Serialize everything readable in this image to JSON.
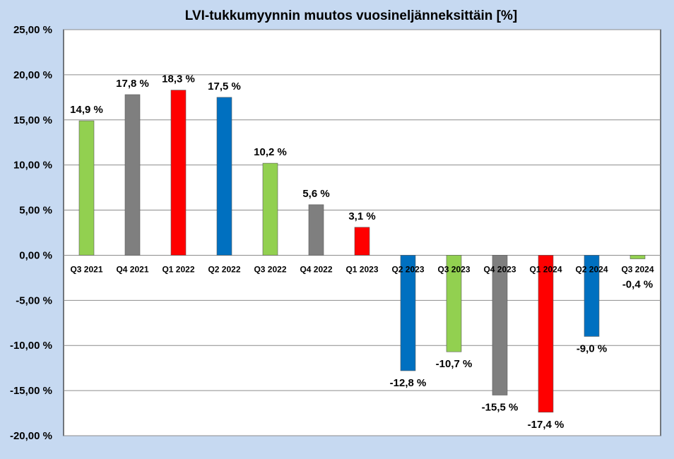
{
  "chart_data": {
    "type": "bar",
    "title": "LVI-tukkumyynnin muutos vuosineljänneksittäin [%]",
    "xlabel": "",
    "ylabel": "",
    "ylim": [
      -20,
      25
    ],
    "ytick_step": 5,
    "ytick_labels": [
      "25,00 %",
      "20,00 %",
      "15,00 %",
      "10,00 %",
      "5,00 %",
      "0,00 %",
      "-5,00 %",
      "-10,00 %",
      "-15,00 %",
      "-20,00 %"
    ],
    "categories": [
      "Q3 2021",
      "Q4 2021",
      "Q1 2022",
      "Q2 2022",
      "Q3 2022",
      "Q4 2022",
      "Q1 2023",
      "Q2 2023",
      "Q3 2023",
      "Q4 2023",
      "Q1 2024",
      "Q2 2024",
      "Q3 2024"
    ],
    "values": [
      14.9,
      17.8,
      18.3,
      17.5,
      10.2,
      5.6,
      3.1,
      -12.8,
      -10.7,
      -15.5,
      -17.4,
      -9.0,
      -0.4
    ],
    "data_labels": [
      "14,9 %",
      "17,8 %",
      "18,3 %",
      "17,5 %",
      "10,2 %",
      "5,6 %",
      "3,1 %",
      "-12,8 %",
      "-10,7 %",
      "-15,5 %",
      "-17,4 %",
      "-9,0 %",
      "-0,4 %"
    ],
    "bar_colors": [
      "#92d050",
      "#7f7f7f",
      "#ff0000",
      "#0070c0",
      "#92d050",
      "#7f7f7f",
      "#ff0000",
      "#0070c0",
      "#92d050",
      "#7f7f7f",
      "#ff0000",
      "#0070c0",
      "#92d050"
    ],
    "grid": true,
    "legend": "none",
    "background_color": "#c6d9f1",
    "plot_background_color": "#ffffff"
  }
}
